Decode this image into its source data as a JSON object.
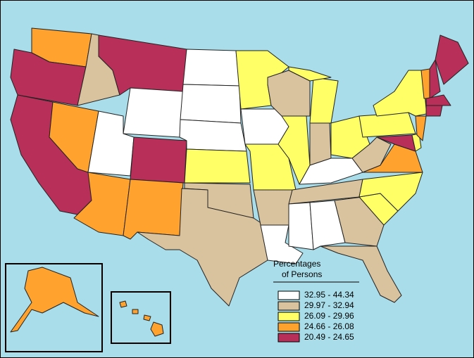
{
  "legend": {
    "title_lines": [
      "Percentages",
      "of Persons"
    ],
    "items": [
      {
        "label": "32.95 - 44.34",
        "color": "#ffffff"
      },
      {
        "label": "29.97 - 32.94",
        "color": "#d9c29e"
      },
      {
        "label": "26.09 - 29.96",
        "color": "#ffff66"
      },
      {
        "label": "24.66 - 26.08",
        "color": "#ffa22e"
      },
      {
        "label": "20.49 - 24.65",
        "color": "#b8305a"
      }
    ]
  }
}
